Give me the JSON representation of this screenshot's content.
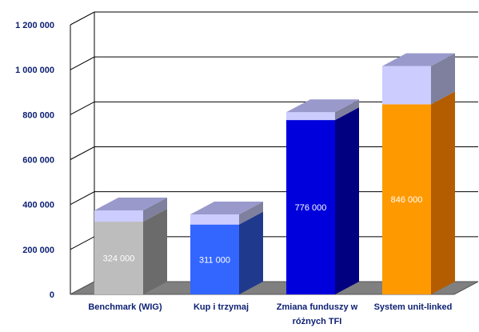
{
  "chart_data": {
    "type": "bar",
    "stacked_3d": true,
    "categories": [
      [
        "Benchmark (WIG)"
      ],
      [
        "Kup i trzymaj"
      ],
      [
        "Zmiana funduszy w",
        "różnych TFI"
      ],
      [
        "System unit-linked"
      ]
    ],
    "series": [
      {
        "values": [
          324000,
          311000,
          776000,
          846000
        ],
        "labels": [
          "324 000",
          "311 000",
          "776 000",
          "846 000"
        ],
        "colors": [
          "#bdbdbd",
          "#3366ff",
          "#0000dd",
          "#ff9900"
        ],
        "side_colors": [
          "#6b6b6b",
          "#1f3a8c",
          "#000080",
          "#b35d00"
        ]
      },
      {
        "values": [
          50000,
          45000,
          35000,
          170000
        ],
        "colors": [
          "#ccccff",
          "#ccccff",
          "#ccccff",
          "#ccccff"
        ],
        "side_colors": [
          "#7f7f9e",
          "#7f7f9e",
          "#7f7f9e",
          "#7f7f9e"
        ]
      }
    ],
    "y_ticks": [
      "0",
      "200 000",
      "400 000",
      "600 000",
      "800 000",
      "1 000 000",
      "1 200 000"
    ],
    "ylim": [
      0,
      1200000
    ],
    "grid": true,
    "colors": {
      "gridline": "#000000",
      "floor": "#808080",
      "top_face": "#9999cc",
      "axis_text": "#0b1f72"
    }
  }
}
